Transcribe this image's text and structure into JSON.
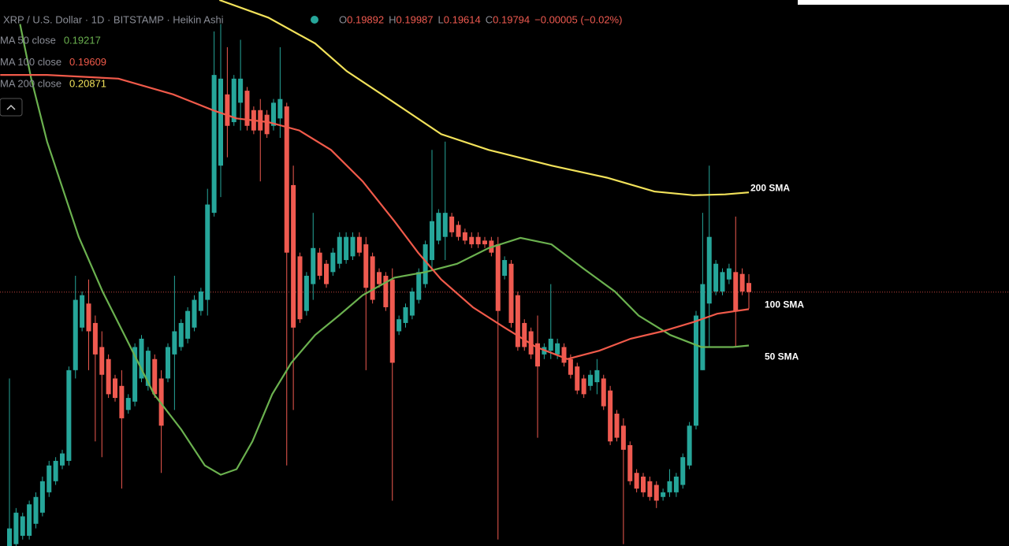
{
  "chart_data": {
    "type": "candlestick",
    "title": "XRP / U.S. Dollar · 1D · BITSTAMP · Heikin Ashi",
    "ohlc_labels": [
      "O",
      "H",
      "L",
      "C"
    ],
    "change": "−0.00005 (−0.02%)",
    "up_color": "#26a69a",
    "down_color": "#ef5a50",
    "ylim": [
      0.1705,
      0.2295
    ],
    "open": [
      0.1705,
      0.1707,
      0.1716,
      0.1716,
      0.1729,
      0.1741,
      0.1763,
      0.1775,
      0.1792,
      0.1797,
      0.1895,
      0.1941,
      0.1967,
      0.1946,
      0.192,
      0.1907,
      0.1886,
      0.1878,
      0.1852,
      0.1861,
      0.1886,
      0.1878,
      0.1907,
      0.1886,
      0.1886,
      0.1912,
      0.192,
      0.1929,
      0.1941,
      0.1959,
      0.1971,
      0.2065,
      0.2116,
      0.2193,
      0.2163,
      0.2184,
      0.2197,
      0.2176,
      0.2176,
      0.2171,
      0.2159,
      0.2167,
      0.218,
      0.2095,
      0.2018,
      0.1959,
      0.1988,
      0.2022,
      0.201,
      0.2001,
      0.201,
      0.2014,
      0.2018,
      0.2039,
      0.2031,
      0.2018,
      0.2001,
      0.1997,
      0.1993,
      0.1937,
      0.1946,
      0.1954,
      0.1971,
      0.1988,
      0.2014,
      0.2035,
      0.2039,
      0.2061,
      0.2052,
      0.2044,
      0.2039,
      0.2039,
      0.2035,
      0.2035,
      0.2031,
      0.1997,
      0.201,
      0.1976,
      0.1946,
      0.1937,
      0.1924,
      0.1912,
      0.1916,
      0.1912,
      0.192,
      0.1907,
      0.1899,
      0.1886,
      0.1878,
      0.1882,
      0.1886,
      0.1873,
      0.1848,
      0.1835,
      0.1814,
      0.1784,
      0.178,
      0.1775,
      0.1771,
      0.1758,
      0.1763,
      0.1763,
      0.1771,
      0.1792,
      0.1835,
      0.1895,
      0.1967,
      0.198,
      0.198,
      0.1993,
      0.2001,
      0.1999,
      0.19892
    ],
    "high": [
      0.1886,
      0.1746,
      0.1741,
      0.1754,
      0.1763,
      0.178,
      0.1797,
      0.1801,
      0.1809,
      0.1899,
      0.1997,
      0.198,
      0.1993,
      0.1954,
      0.1937,
      0.1912,
      0.189,
      0.1895,
      0.1869,
      0.1924,
      0.1933,
      0.192,
      0.1912,
      0.1895,
      0.1924,
      0.1997,
      0.195,
      0.1963,
      0.1976,
      0.1984,
      0.2091,
      0.2261,
      0.2269,
      0.2244,
      0.2214,
      0.2252,
      0.2201,
      0.218,
      0.2188,
      0.2176,
      0.2188,
      0.2244,
      0.2184,
      0.2116,
      0.2022,
      0.2001,
      0.2065,
      0.2027,
      0.2014,
      0.2027,
      0.2044,
      0.2044,
      0.2044,
      0.2044,
      0.2039,
      0.2022,
      0.2005,
      0.2001,
      0.2005,
      0.1954,
      0.1967,
      0.1984,
      0.2005,
      0.2035,
      0.2133,
      0.2069,
      0.2142,
      0.2065,
      0.2056,
      0.2048,
      0.2044,
      0.2044,
      0.2039,
      0.2039,
      0.2039,
      0.2018,
      0.2014,
      0.198,
      0.195,
      0.1941,
      0.1954,
      0.1924,
      0.1988,
      0.1929,
      0.1924,
      0.1912,
      0.1903,
      0.189,
      0.1895,
      0.1907,
      0.189,
      0.1878,
      0.1852,
      0.1843,
      0.1818,
      0.1788,
      0.1784,
      0.178,
      0.1775,
      0.1767,
      0.1788,
      0.1784,
      0.1805,
      0.1839,
      0.1959,
      0.2065,
      0.2116,
      0.2014,
      0.2005,
      0.201,
      0.2061,
      0.2005,
      0.19987
    ],
    "low": [
      0.1705,
      0.1705,
      0.1712,
      0.1712,
      0.1724,
      0.1737,
      0.1758,
      0.1771,
      0.1788,
      0.1792,
      0.1886,
      0.1937,
      0.1895,
      0.1818,
      0.1801,
      0.1865,
      0.1861,
      0.1767,
      0.1848,
      0.1856,
      0.1882,
      0.1873,
      0.1865,
      0.1784,
      0.1882,
      0.1852,
      0.1916,
      0.1924,
      0.1937,
      0.1954,
      0.1954,
      0.2061,
      0.2082,
      0.2125,
      0.2159,
      0.2154,
      0.2154,
      0.215,
      0.2099,
      0.2146,
      0.2154,
      0.2146,
      0.1792,
      0.1852,
      0.1946,
      0.1954,
      0.1971,
      0.1993,
      0.1984,
      0.1997,
      0.2005,
      0.201,
      0.2014,
      0.2018,
      0.1895,
      0.1967,
      0.1984,
      0.1959,
      0.1754,
      0.1933,
      0.1941,
      0.195,
      0.1967,
      0.1984,
      0.2005,
      0.2031,
      0.2014,
      0.2039,
      0.2035,
      0.2031,
      0.2027,
      0.2027,
      0.2027,
      0.2018,
      0.1712,
      0.1993,
      0.1941,
      0.1916,
      0.1916,
      0.1907,
      0.1822,
      0.1907,
      0.1907,
      0.1907,
      0.1899,
      0.1886,
      0.1869,
      0.1865,
      0.1873,
      0.1869,
      0.1852,
      0.1814,
      0.1818,
      0.1707,
      0.1771,
      0.1763,
      0.1758,
      0.1754,
      0.1746,
      0.1754,
      0.1758,
      0.1758,
      0.1767,
      0.1788,
      0.1831,
      0.1895,
      0.192,
      0.1976,
      0.1976,
      0.1988,
      0.192,
      0.1976,
      0.19614
    ],
    "close": [
      0.1724,
      0.1741,
      0.1737,
      0.175,
      0.1758,
      0.1775,
      0.1792,
      0.1797,
      0.1805,
      0.1895,
      0.1971,
      0.1976,
      0.1937,
      0.1912,
      0.189,
      0.1869,
      0.1865,
      0.1843,
      0.1865,
      0.192,
      0.1929,
      0.1916,
      0.1869,
      0.1835,
      0.192,
      0.1937,
      0.1946,
      0.1959,
      0.1971,
      0.198,
      0.2074,
      0.2214,
      0.221,
      0.2159,
      0.221,
      0.221,
      0.2159,
      0.2154,
      0.2154,
      0.215,
      0.2184,
      0.2188,
      0.2022,
      0.1941,
      0.195,
      0.1997,
      0.2027,
      0.1997,
      0.1988,
      0.2022,
      0.2039,
      0.2039,
      0.2039,
      0.2022,
      0.1984,
      0.1971,
      0.1988,
      0.1963,
      0.1903,
      0.195,
      0.1963,
      0.198,
      0.2001,
      0.2031,
      0.2056,
      0.2065,
      0.2065,
      0.2044,
      0.2039,
      0.2035,
      0.2031,
      0.2031,
      0.2031,
      0.2022,
      0.1959,
      0.2014,
      0.1946,
      0.192,
      0.192,
      0.1912,
      0.1899,
      0.192,
      0.1929,
      0.1924,
      0.1903,
      0.189,
      0.1873,
      0.1869,
      0.189,
      0.1895,
      0.1856,
      0.1818,
      0.1822,
      0.1809,
      0.1775,
      0.1767,
      0.1763,
      0.1758,
      0.1754,
      0.1763,
      0.1775,
      0.178,
      0.1801,
      0.1835,
      0.1954,
      0.1988,
      0.2039,
      0.201,
      0.2001,
      0.2005,
      0.1959,
      0.198,
      0.19794
    ],
    "series": [
      {
        "name": "MA 50 close",
        "label": "50 SMA",
        "color": "#6bb14f",
        "x": [
          1.6,
          3.3,
          5.7,
          10.5,
          14.1,
          17.7,
          21.9,
          26.0,
          29.6,
          32.0,
          34.4,
          36.8,
          39.8,
          42.7,
          46.3,
          49.9,
          53.5,
          58.3,
          63.0,
          67.8,
          72.6,
          77.4,
          82.1,
          86.9,
          91.7,
          95.3,
          100.1,
          104.8,
          109.6,
          112
        ],
        "values": [
          0.2269,
          0.221,
          0.2142,
          0.2039,
          0.198,
          0.1929,
          0.1869,
          0.1831,
          0.1792,
          0.1782,
          0.1788,
          0.1818,
          0.1869,
          0.1903,
          0.1933,
          0.1954,
          0.1976,
          0.1995,
          0.2001,
          0.201,
          0.2027,
          0.2038,
          0.2031,
          0.2005,
          0.198,
          0.1954,
          0.1933,
          0.192,
          0.192,
          0.19217
        ]
      },
      {
        "name": "MA 100 close",
        "label": "100 SMA",
        "color": "#f05a4a",
        "x": [
          -1.4,
          5.7,
          16.5,
          24.8,
          30.8,
          34.4,
          39.2,
          43.9,
          48.7,
          53.5,
          58.3,
          61.9,
          65.4,
          70.2,
          75.0,
          79.8,
          84.5,
          89.3,
          94.1,
          98.9,
          103.6,
          107.2,
          112
        ],
        "values": [
          0.2214,
          0.2214,
          0.221,
          0.2193,
          0.2176,
          0.2167,
          0.2163,
          0.2154,
          0.2133,
          0.2099,
          0.2056,
          0.2022,
          0.1993,
          0.1963,
          0.1941,
          0.192,
          0.1907,
          0.1916,
          0.1929,
          0.1937,
          0.1947,
          0.1956,
          0.19609
        ]
      },
      {
        "name": "MA 200 close",
        "label": "200 SMA",
        "color": "#f2e25a",
        "x": [
          31.8,
          39.2,
          46.3,
          51.1,
          58.3,
          65.4,
          72.6,
          82.1,
          90.5,
          97.7,
          103.6,
          108.4,
          112
        ],
        "values": [
          0.2295,
          0.2276,
          0.2248,
          0.2218,
          0.2184,
          0.215,
          0.2133,
          0.2116,
          0.2103,
          0.2088,
          0.2084,
          0.2085,
          0.20871
        ]
      }
    ]
  }
}
